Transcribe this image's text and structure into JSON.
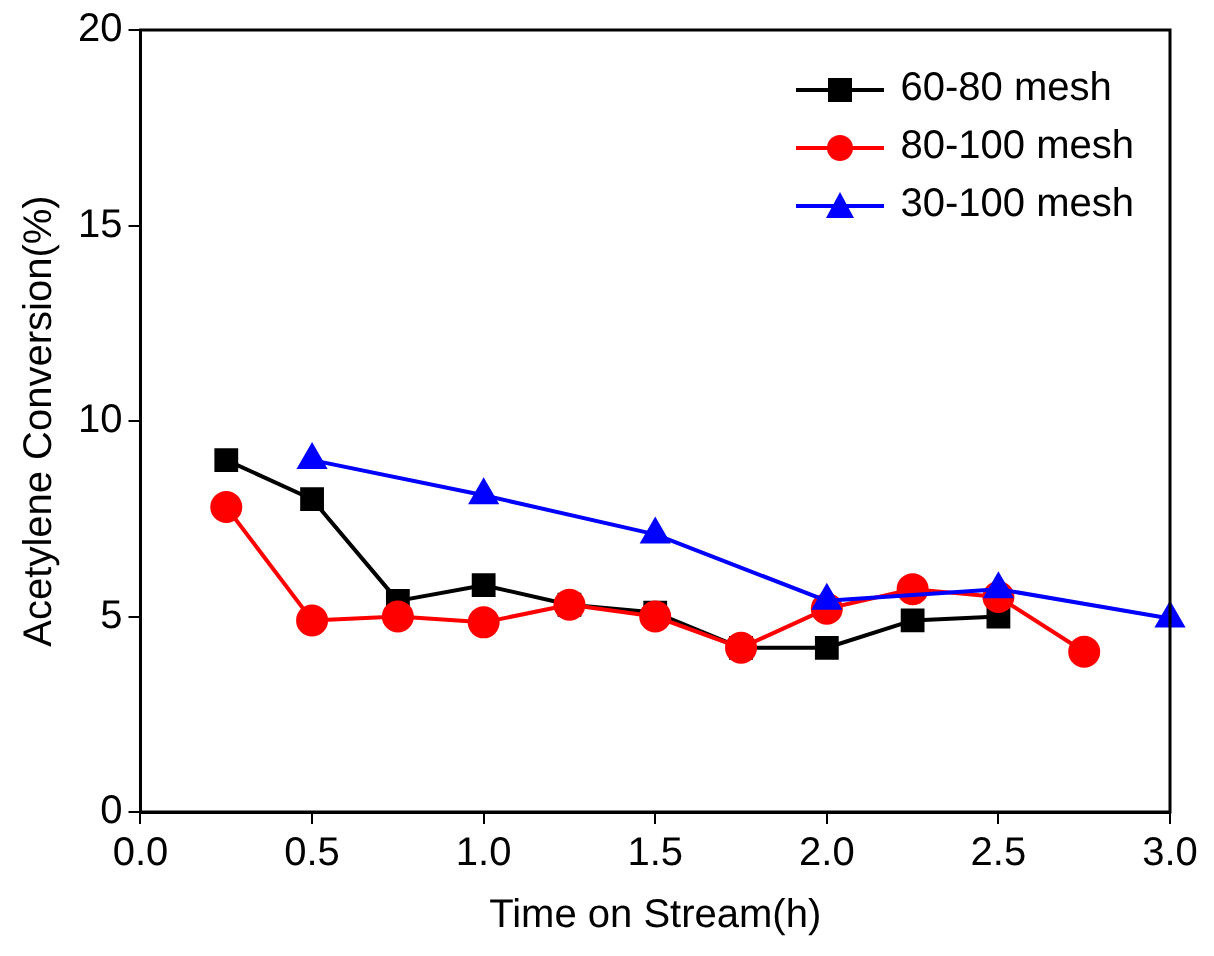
{
  "chart_data": {
    "type": "line",
    "xlabel": "Time on Stream(h)",
    "ylabel": "Acetylene Conversion(%)",
    "xlim": [
      0,
      3
    ],
    "xticks": [
      {
        "value": 0,
        "label": "0.0"
      },
      {
        "value": 0.5,
        "label": "0.5"
      },
      {
        "value": 1,
        "label": "1.0"
      },
      {
        "value": 1.5,
        "label": "1.5"
      },
      {
        "value": 2,
        "label": "2.0"
      },
      {
        "value": 2.5,
        "label": "2.5"
      },
      {
        "value": 3,
        "label": "3.0"
      }
    ],
    "ylim": [
      0,
      20
    ],
    "yticks": [
      0,
      5,
      10,
      15,
      20
    ],
    "grid": false,
    "legend": "top right",
    "line_style": "solid",
    "series": [
      {
        "name": "60-80 mesh",
        "color": "#000000",
        "marker": "square",
        "x": [
          0.25,
          0.5,
          0.75,
          1,
          1.25,
          1.5,
          1.75,
          2,
          2.25,
          2.5
        ],
        "values": [
          9.0,
          8.0,
          5.4,
          5.8,
          5.3,
          5.1,
          4.2,
          4.2,
          4.9,
          5.0
        ]
      },
      {
        "name": "80-100 mesh",
        "color": "#ff0000",
        "marker": "circle",
        "x": [
          0.25,
          0.5,
          0.75,
          1,
          1.25,
          1.5,
          1.75,
          2,
          2.25,
          2.5,
          2.75
        ],
        "values": [
          7.8,
          4.9,
          5.0,
          4.85,
          5.3,
          5.0,
          4.2,
          5.2,
          5.7,
          5.5,
          4.1
        ]
      },
      {
        "name": "30-100 mesh",
        "color": "#0000ff",
        "marker": "triangle",
        "x": [
          0.5,
          1,
          1.5,
          2,
          2.5,
          3
        ],
        "values": [
          9.0,
          8.1,
          7.1,
          5.4,
          5.7,
          4.95
        ]
      }
    ]
  }
}
